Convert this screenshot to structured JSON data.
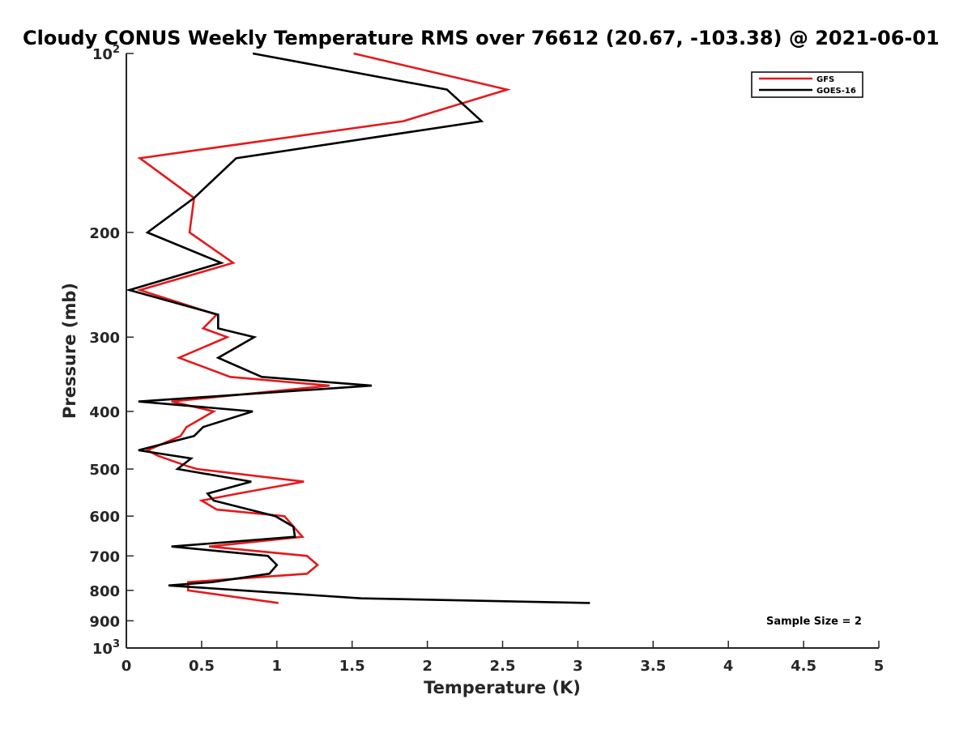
{
  "chart_data": {
    "type": "line",
    "title": "Cloudy CONUS Weekly Temperature RMS over 76612 (20.67, -103.38) @ 2021-06-01",
    "xlabel": "Temperature (K)",
    "ylabel": "Pressure (mb)",
    "xlim": [
      0,
      5
    ],
    "ylim": [
      100,
      1000
    ],
    "y_scale": "log",
    "y_reversed": true,
    "grid": false,
    "legend_position": "top-right",
    "x_ticks": [
      0,
      0.5,
      1,
      1.5,
      2,
      2.5,
      3,
      3.5,
      4,
      4.5,
      5
    ],
    "x_tick_labels": [
      "0",
      "0.5",
      "1",
      "1.5",
      "2",
      "2.5",
      "3",
      "3.5",
      "4",
      "4.5",
      "5"
    ],
    "y_ticks": [
      100,
      200,
      300,
      400,
      500,
      600,
      700,
      800,
      900,
      1000
    ],
    "y_tick_labels": [
      {
        "base": "10",
        "exp": "2"
      },
      {
        "base": "200",
        "exp": ""
      },
      {
        "base": "300",
        "exp": ""
      },
      {
        "base": "400",
        "exp": ""
      },
      {
        "base": "500",
        "exp": ""
      },
      {
        "base": "600",
        "exp": ""
      },
      {
        "base": "700",
        "exp": ""
      },
      {
        "base": "800",
        "exp": ""
      },
      {
        "base": "900",
        "exp": ""
      },
      {
        "base": "10",
        "exp": "3"
      }
    ],
    "annotation": "Sample Size = 2",
    "series": [
      {
        "name": "GFS",
        "color": "#e41a1c",
        "points": [
          [
            1.51,
            100
          ],
          [
            2.53,
            115
          ],
          [
            1.84,
            130
          ],
          [
            0.09,
            150
          ],
          [
            0.45,
            175
          ],
          [
            0.42,
            200
          ],
          [
            0.71,
            225
          ],
          [
            0.09,
            250
          ],
          [
            0.6,
            275
          ],
          [
            0.51,
            290
          ],
          [
            0.67,
            300
          ],
          [
            0.35,
            325
          ],
          [
            0.69,
            350
          ],
          [
            1.35,
            362
          ],
          [
            0.3,
            385
          ],
          [
            0.58,
            400
          ],
          [
            0.4,
            425
          ],
          [
            0.36,
            440
          ],
          [
            0.14,
            465
          ],
          [
            0.21,
            475
          ],
          [
            0.41,
            495
          ],
          [
            0.47,
            500
          ],
          [
            1.18,
            525
          ],
          [
            0.74,
            550
          ],
          [
            0.5,
            565
          ],
          [
            0.6,
            585
          ],
          [
            1.05,
            600
          ],
          [
            1.17,
            650
          ],
          [
            0.55,
            675
          ],
          [
            1.2,
            700
          ],
          [
            1.27,
            725
          ],
          [
            1.2,
            750
          ],
          [
            0.41,
            775
          ],
          [
            0.41,
            800
          ],
          [
            1.01,
            840
          ]
        ]
      },
      {
        "name": "GOES-16",
        "color": "#000000",
        "points": [
          [
            0.84,
            100
          ],
          [
            2.13,
            115
          ],
          [
            2.36,
            130
          ],
          [
            0.73,
            150
          ],
          [
            0.45,
            175
          ],
          [
            0.14,
            200
          ],
          [
            0.63,
            225
          ],
          [
            0.02,
            250
          ],
          [
            0.61,
            275
          ],
          [
            0.61,
            290
          ],
          [
            0.85,
            300
          ],
          [
            0.61,
            325
          ],
          [
            0.9,
            350
          ],
          [
            1.63,
            362
          ],
          [
            0.08,
            385
          ],
          [
            0.84,
            400
          ],
          [
            0.51,
            425
          ],
          [
            0.45,
            440
          ],
          [
            0.08,
            465
          ],
          [
            0.43,
            480
          ],
          [
            0.34,
            500
          ],
          [
            0.83,
            525
          ],
          [
            0.54,
            550
          ],
          [
            0.58,
            565
          ],
          [
            0.99,
            600
          ],
          [
            1.11,
            625
          ],
          [
            1.12,
            650
          ],
          [
            0.3,
            675
          ],
          [
            0.94,
            700
          ],
          [
            1.0,
            725
          ],
          [
            0.95,
            750
          ],
          [
            0.57,
            775
          ],
          [
            0.28,
            785
          ],
          [
            0.77,
            800
          ],
          [
            1.56,
            825
          ],
          [
            3.08,
            840
          ]
        ]
      }
    ]
  }
}
